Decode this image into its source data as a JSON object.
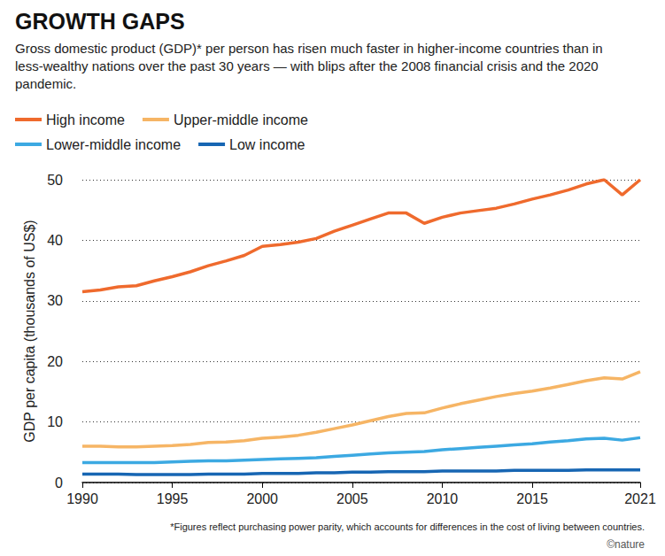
{
  "chart_data": {
    "type": "line",
    "title": "GROWTH GAPS",
    "subtitle": "Gross domestic product (GDP)* per person has risen much faster in higher-income countries than in less-wealthy nations over the past 30 years — with blips after the 2008 financial crisis and the 2020 pandemic.",
    "y_label": "GDP per capita (thousands of US$)",
    "footnote": "*Figures reflect purchasing power parity, which accounts for differences in the cost of living between countries.",
    "credit": "©nature",
    "x": [
      1990,
      1991,
      1992,
      1993,
      1994,
      1995,
      1996,
      1997,
      1998,
      1999,
      2000,
      2001,
      2002,
      2003,
      2004,
      2005,
      2006,
      2007,
      2008,
      2009,
      2010,
      2011,
      2012,
      2013,
      2014,
      2015,
      2016,
      2017,
      2018,
      2019,
      2020,
      2021
    ],
    "xlim": [
      1990,
      2021
    ],
    "xticks": [
      1990,
      1995,
      2000,
      2005,
      2010,
      2015,
      2021
    ],
    "ylim": [
      0,
      50
    ],
    "yticks": [
      0,
      10,
      20,
      30,
      40,
      50
    ],
    "grid": true,
    "legend": "top-left",
    "marker": "none",
    "series": [
      {
        "name": "High income",
        "color": "#ef6a2d",
        "values": [
          31.5,
          31.8,
          32.3,
          32.5,
          33.3,
          34.0,
          34.8,
          35.8,
          36.6,
          37.5,
          39.0,
          39.3,
          39.7,
          40.3,
          41.5,
          42.5,
          43.5,
          44.5,
          44.5,
          42.8,
          43.8,
          44.5,
          44.9,
          45.3,
          46.0,
          46.8,
          47.5,
          48.3,
          49.3,
          50.0,
          47.5,
          50.0
        ]
      },
      {
        "name": "Upper-middle income",
        "color": "#f6b565",
        "values": [
          6.0,
          6.0,
          5.9,
          5.9,
          6.0,
          6.1,
          6.3,
          6.6,
          6.7,
          6.9,
          7.3,
          7.5,
          7.8,
          8.3,
          8.9,
          9.5,
          10.2,
          10.9,
          11.4,
          11.5,
          12.3,
          13.0,
          13.6,
          14.2,
          14.7,
          15.1,
          15.6,
          16.2,
          16.8,
          17.3,
          17.1,
          18.3
        ]
      },
      {
        "name": "Lower-middle income",
        "color": "#3ca9e2",
        "values": [
          3.3,
          3.3,
          3.3,
          3.3,
          3.3,
          3.4,
          3.5,
          3.6,
          3.6,
          3.7,
          3.8,
          3.9,
          4.0,
          4.1,
          4.3,
          4.5,
          4.7,
          4.9,
          5.0,
          5.1,
          5.4,
          5.6,
          5.8,
          6.0,
          6.2,
          6.4,
          6.7,
          6.9,
          7.2,
          7.3,
          7.0,
          7.4
        ]
      },
      {
        "name": "Low income",
        "color": "#1766b3",
        "values": [
          1.4,
          1.4,
          1.4,
          1.3,
          1.3,
          1.3,
          1.3,
          1.4,
          1.4,
          1.4,
          1.5,
          1.5,
          1.5,
          1.6,
          1.6,
          1.7,
          1.7,
          1.8,
          1.8,
          1.8,
          1.9,
          1.9,
          1.9,
          1.9,
          2.0,
          2.0,
          2.0,
          2.0,
          2.1,
          2.1,
          2.1,
          2.1
        ]
      }
    ]
  }
}
